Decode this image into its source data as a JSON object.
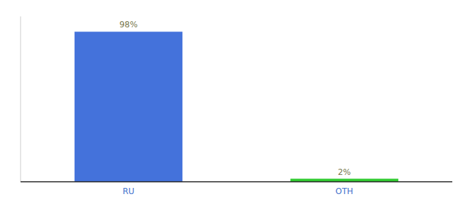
{
  "chart_data": {
    "type": "bar",
    "categories": [
      "RU",
      "OTH"
    ],
    "values": [
      98,
      2
    ],
    "value_labels": [
      "98%",
      "2%"
    ],
    "colors": [
      "#4472DB",
      "#33CC33"
    ],
    "ylim": [
      0,
      108
    ],
    "data_labels": true,
    "tick_labels": "x",
    "grid": false
  }
}
